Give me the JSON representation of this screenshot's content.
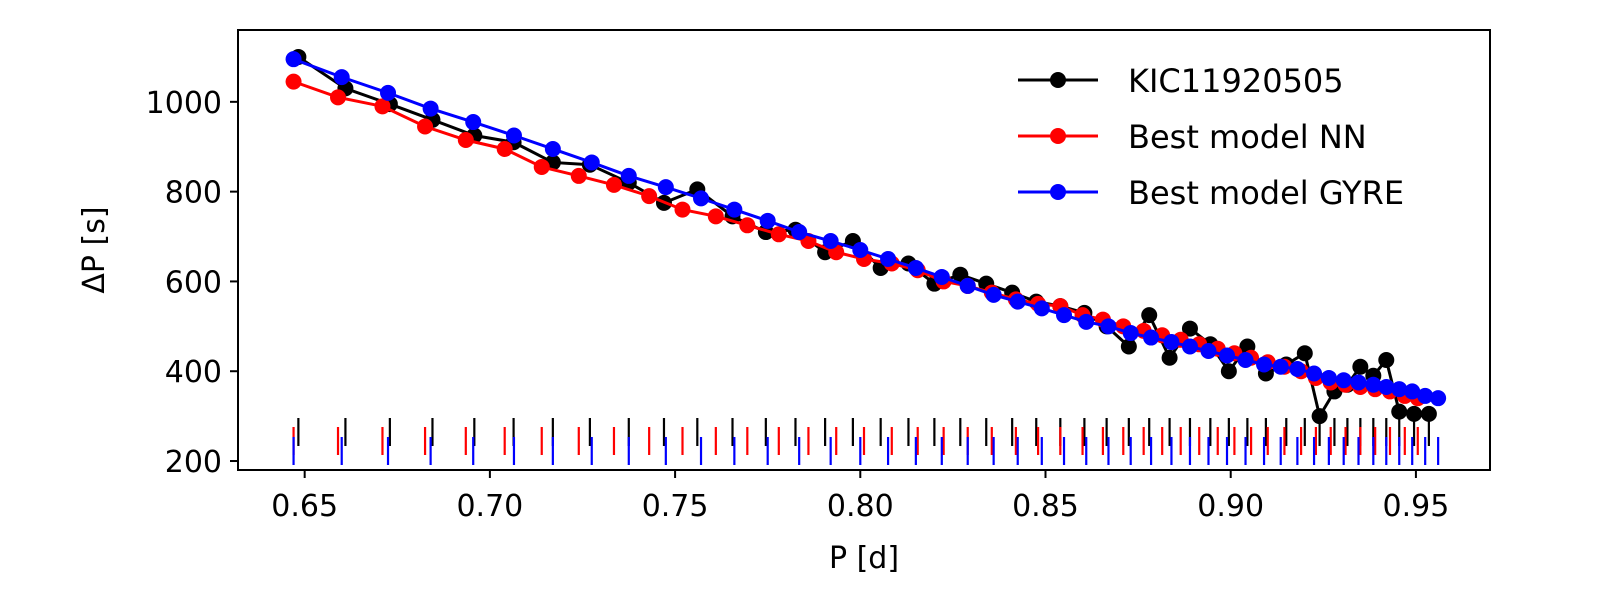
{
  "chart_data": {
    "type": "line",
    "title": "",
    "xlabel": "P [d]",
    "ylabel": "ΔP [s]",
    "xlim": [
      0.632,
      0.97
    ],
    "ylim": [
      180,
      1160
    ],
    "xticks": [
      0.65,
      0.7,
      0.75,
      0.8,
      0.85,
      0.9,
      0.95
    ],
    "xtick_labels": [
      "0.65",
      "0.70",
      "0.75",
      "0.80",
      "0.85",
      "0.90",
      "0.95"
    ],
    "yticks": [
      200,
      400,
      600,
      800,
      1000
    ],
    "ytick_labels": [
      "200",
      "400",
      "600",
      "800",
      "1000"
    ],
    "grid": false,
    "legend_position": "top-right",
    "series": [
      {
        "name": "KIC11920505",
        "color": "#000000",
        "x": [
          0.6483,
          0.661,
          0.673,
          0.6845,
          0.6958,
          0.7064,
          0.717,
          0.727,
          0.7375,
          0.747,
          0.756,
          0.7655,
          0.7745,
          0.7825,
          0.7905,
          0.798,
          0.8055,
          0.813,
          0.82,
          0.827,
          0.834,
          0.841,
          0.8475,
          0.854,
          0.8605,
          0.8665,
          0.8725,
          0.878,
          0.8835,
          0.889,
          0.8945,
          0.8995,
          0.9045,
          0.9095,
          0.915,
          0.92,
          0.924,
          0.928,
          0.9315,
          0.935,
          0.9385,
          0.942,
          0.9455,
          0.9495,
          0.9535
        ],
        "y": [
          1100,
          1030,
          995,
          960,
          925,
          910,
          865,
          860,
          820,
          775,
          805,
          745,
          710,
          715,
          665,
          690,
          630,
          640,
          595,
          615,
          595,
          575,
          555,
          545,
          530,
          500,
          455,
          525,
          430,
          495,
          460,
          400,
          455,
          395,
          415,
          440,
          300,
          355,
          370,
          410,
          390,
          425,
          310,
          305,
          305
        ]
      },
      {
        "name": "Best model NN",
        "color": "#ff0000",
        "x": [
          0.647,
          0.659,
          0.671,
          0.6825,
          0.6935,
          0.704,
          0.714,
          0.724,
          0.7335,
          0.743,
          0.752,
          0.761,
          0.7695,
          0.778,
          0.786,
          0.7935,
          0.801,
          0.8085,
          0.8155,
          0.8225,
          0.829,
          0.8355,
          0.842,
          0.848,
          0.854,
          0.86,
          0.8655,
          0.871,
          0.8765,
          0.8815,
          0.8865,
          0.8915,
          0.8965,
          0.901,
          0.9055,
          0.91,
          0.9145,
          0.919,
          0.923,
          0.927,
          0.931,
          0.935,
          0.939,
          0.943,
          0.947,
          0.9505
        ],
        "y": [
          1045,
          1010,
          990,
          945,
          915,
          895,
          855,
          835,
          815,
          790,
          760,
          745,
          725,
          705,
          690,
          665,
          650,
          640,
          625,
          600,
          590,
          575,
          560,
          550,
          545,
          525,
          515,
          500,
          490,
          480,
          470,
          460,
          450,
          440,
          430,
          420,
          410,
          400,
          385,
          375,
          370,
          365,
          360,
          355,
          345,
          340
        ]
      },
      {
        "name": "Best model GYRE",
        "color": "#0000ff",
        "x": [
          0.647,
          0.66,
          0.6725,
          0.684,
          0.6955,
          0.7065,
          0.717,
          0.7275,
          0.7375,
          0.7475,
          0.757,
          0.766,
          0.775,
          0.7835,
          0.792,
          0.8,
          0.8075,
          0.815,
          0.822,
          0.829,
          0.836,
          0.8425,
          0.849,
          0.855,
          0.861,
          0.867,
          0.873,
          0.8785,
          0.884,
          0.889,
          0.894,
          0.899,
          0.904,
          0.909,
          0.9135,
          0.918,
          0.9225,
          0.9265,
          0.9305,
          0.9345,
          0.9385,
          0.942,
          0.9455,
          0.949,
          0.9525,
          0.956
        ],
        "y": [
          1095,
          1055,
          1020,
          985,
          955,
          925,
          895,
          865,
          835,
          810,
          785,
          760,
          735,
          710,
          690,
          670,
          650,
          630,
          610,
          590,
          570,
          555,
          540,
          525,
          510,
          500,
          485,
          475,
          465,
          455,
          445,
          435,
          425,
          415,
          410,
          405,
          395,
          385,
          380,
          375,
          370,
          365,
          360,
          355,
          345,
          340
        ]
      }
    ],
    "period_markers": {
      "description": "vertical ticks marking each mode period for each series, drawn near the bottom of the panel",
      "series_order": [
        "KIC11920505",
        "Best model NN",
        "Best model GYRE"
      ]
    }
  }
}
